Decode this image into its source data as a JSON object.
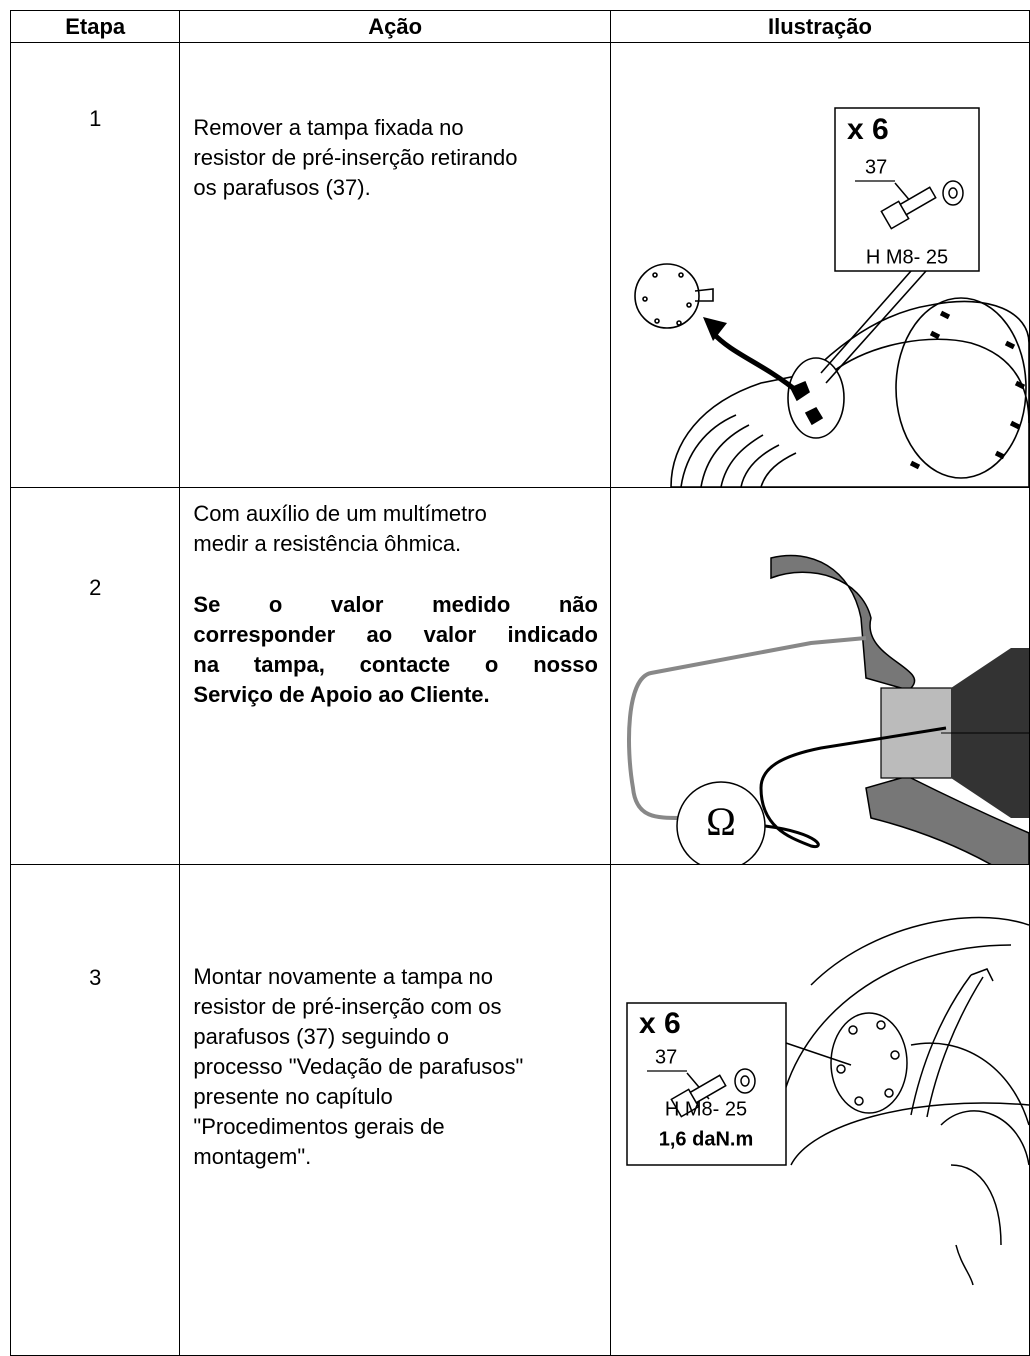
{
  "table": {
    "headers": [
      "Etapa",
      "Ação",
      "Ilustração"
    ],
    "rows": [
      {
        "step": "1",
        "action": [
          [
            "Remover a tampa fixada no",
            "resistor de pré-inserção retirando",
            "os parafusos (37)."
          ]
        ],
        "illustration": [
          "x 6",
          "37",
          "H M8- 25"
        ]
      },
      {
        "step": "2",
        "action": [
          [
            "Com auxílio de um multímetro",
            "medir a resistência ôhmica."
          ],
          [
            "Se o valor medido não",
            "corresponder ao valor indicado",
            "na tampa, contacte o nosso",
            "Serviço de Apoio ao Cliente."
          ]
        ],
        "illustration": [
          "Ω"
        ]
      },
      {
        "step": "3",
        "action": [
          [
            "Montar novamente a tampa no",
            "resistor de pré-inserção com os",
            "parafusos (37) seguindo o",
            "processo \"Vedação de parafusos\"",
            "presente no capítulo",
            "\"Procedimentos gerais de",
            "montagem\"."
          ]
        ],
        "illustration": [
          "x 6",
          "37",
          "H M8- 25",
          "1,6 daN.m"
        ]
      }
    ]
  }
}
